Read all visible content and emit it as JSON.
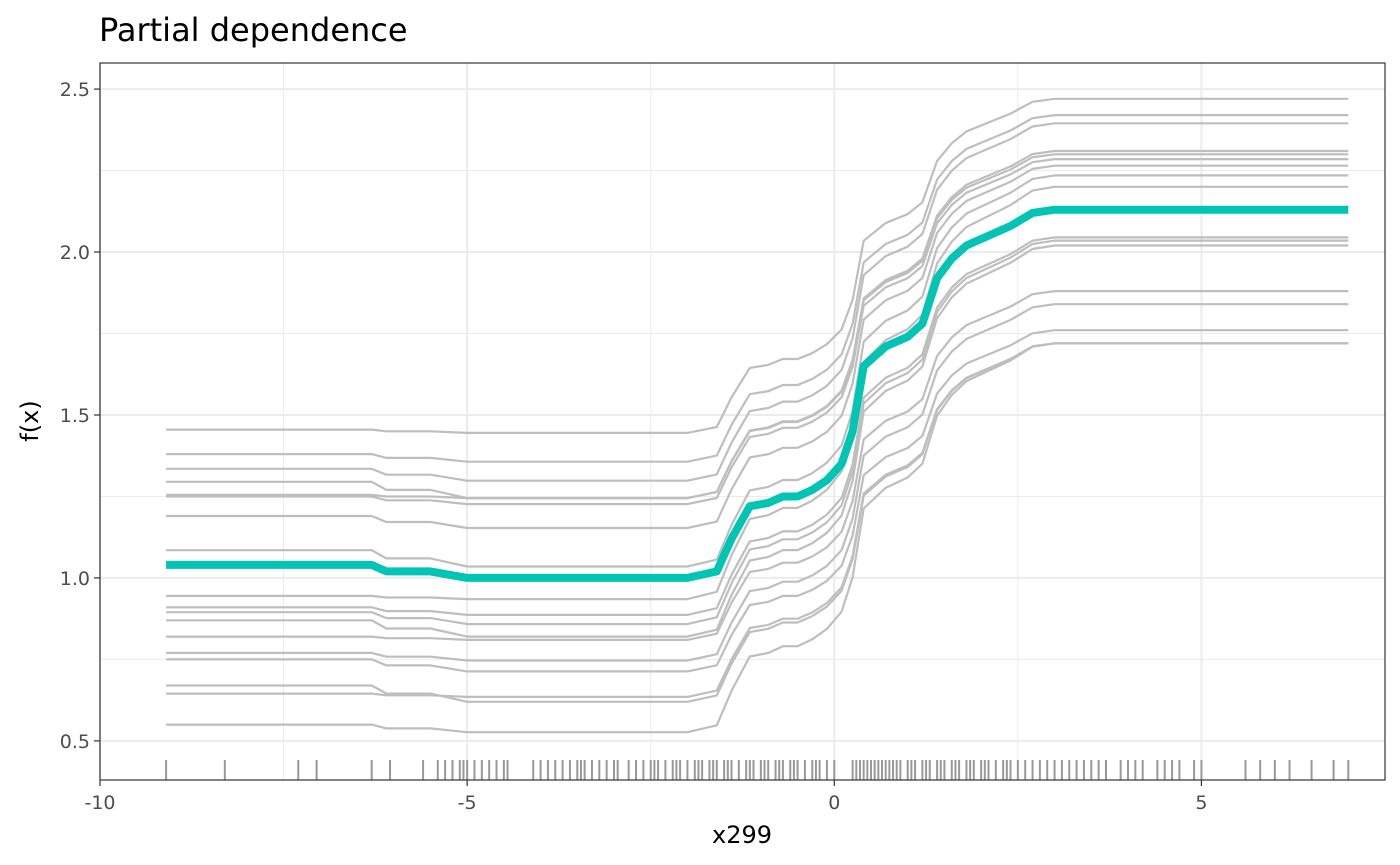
{
  "chart_data": {
    "type": "line",
    "title": "Partial dependence",
    "xlabel": "x299",
    "ylabel": "f(x)",
    "xlim": [
      -10,
      7.5
    ],
    "ylim": [
      0.38,
      2.58
    ],
    "x_ticks": [
      -10,
      -5,
      0,
      5
    ],
    "x_tick_labels": [
      "-10",
      "-5",
      "0",
      "5"
    ],
    "y_ticks": [
      0.5,
      1.0,
      1.5,
      2.0,
      2.5
    ],
    "y_tick_labels": [
      "0.5",
      "1.0",
      "1.5",
      "2.0",
      "2.5"
    ],
    "grid": true,
    "legend": "none",
    "colors": {
      "ice": "#bebebe",
      "pd": "#00c4b4",
      "rug": "#999999"
    },
    "x": [
      -9.1,
      -6.3,
      -6.1,
      -5.5,
      -5.0,
      -2.5,
      -2.0,
      -1.6,
      -1.4,
      -1.15,
      -0.9,
      -0.7,
      -0.5,
      -0.3,
      -0.1,
      0.1,
      0.25,
      0.4,
      0.5,
      0.7,
      1.0,
      1.2,
      1.4,
      1.6,
      1.8,
      2.0,
      2.4,
      2.7,
      3.0,
      4.0,
      7.0
    ],
    "pd_series": {
      "name": "",
      "values": [
        1.04,
        1.04,
        1.02,
        1.02,
        1.0,
        1.0,
        1.0,
        1.02,
        1.12,
        1.22,
        1.23,
        1.25,
        1.25,
        1.27,
        1.3,
        1.35,
        1.45,
        1.65,
        1.67,
        1.71,
        1.74,
        1.78,
        1.92,
        1.98,
        2.02,
        2.04,
        2.08,
        2.12,
        2.13,
        2.13,
        2.13
      ]
    },
    "ice_levels": {
      "start": [
        1.455,
        1.38,
        1.335,
        1.295,
        1.255,
        1.25,
        1.19,
        1.085,
        0.945,
        0.91,
        0.895,
        0.87,
        0.82,
        0.77,
        0.75,
        0.67,
        0.645,
        0.55
      ],
      "end": [
        2.47,
        2.42,
        2.395,
        2.31,
        2.3,
        2.285,
        2.265,
        2.235,
        2.2,
        2.045,
        2.035,
        2.02,
        1.88,
        1.84,
        1.76,
        1.72,
        1.72,
        1.72
      ]
    },
    "rug_x": [
      -9.1,
      -8.3,
      -7.3,
      -7.05,
      -6.3,
      -6.05,
      -5.6,
      -5.4,
      -5.3,
      -5.2,
      -5.1,
      -5.05,
      -5.0,
      -4.9,
      -4.8,
      -4.7,
      -4.6,
      -4.5,
      -4.45,
      -4.1,
      -4.0,
      -3.9,
      -3.8,
      -3.7,
      -3.6,
      -3.5,
      -3.45,
      -3.4,
      -3.3,
      -3.2,
      -3.1,
      -3.0,
      -2.95,
      -2.8,
      -2.7,
      -2.6,
      -2.5,
      -2.45,
      -2.4,
      -2.3,
      -2.2,
      -2.15,
      -2.1,
      -2.0,
      -1.9,
      -1.85,
      -1.8,
      -1.7,
      -1.65,
      -1.6,
      -1.5,
      -1.45,
      -1.4,
      -1.3,
      -1.2,
      -1.15,
      -1.1,
      -1.0,
      -0.95,
      -0.9,
      -0.8,
      -0.75,
      -0.7,
      -0.6,
      -0.55,
      -0.5,
      -0.4,
      -0.3,
      -0.25,
      -0.2,
      -0.1,
      0.0,
      0.25,
      0.3,
      0.35,
      0.4,
      0.45,
      0.5,
      0.55,
      0.6,
      0.65,
      0.7,
      0.75,
      0.8,
      0.85,
      0.9,
      1.0,
      1.05,
      1.1,
      1.2,
      1.25,
      1.3,
      1.4,
      1.45,
      1.5,
      1.6,
      1.65,
      1.7,
      1.8,
      1.85,
      1.9,
      2.0,
      2.05,
      2.1,
      2.2,
      2.3,
      2.35,
      2.4,
      2.5,
      2.6,
      2.7,
      2.8,
      2.9,
      3.0,
      3.1,
      3.2,
      3.3,
      3.4,
      3.5,
      3.6,
      3.7,
      3.9,
      4.0,
      4.1,
      4.2,
      4.4,
      4.5,
      4.6,
      4.7,
      4.9,
      5.0,
      5.6,
      5.8,
      6.0,
      6.2,
      6.5,
      6.8,
      7.0
    ]
  }
}
